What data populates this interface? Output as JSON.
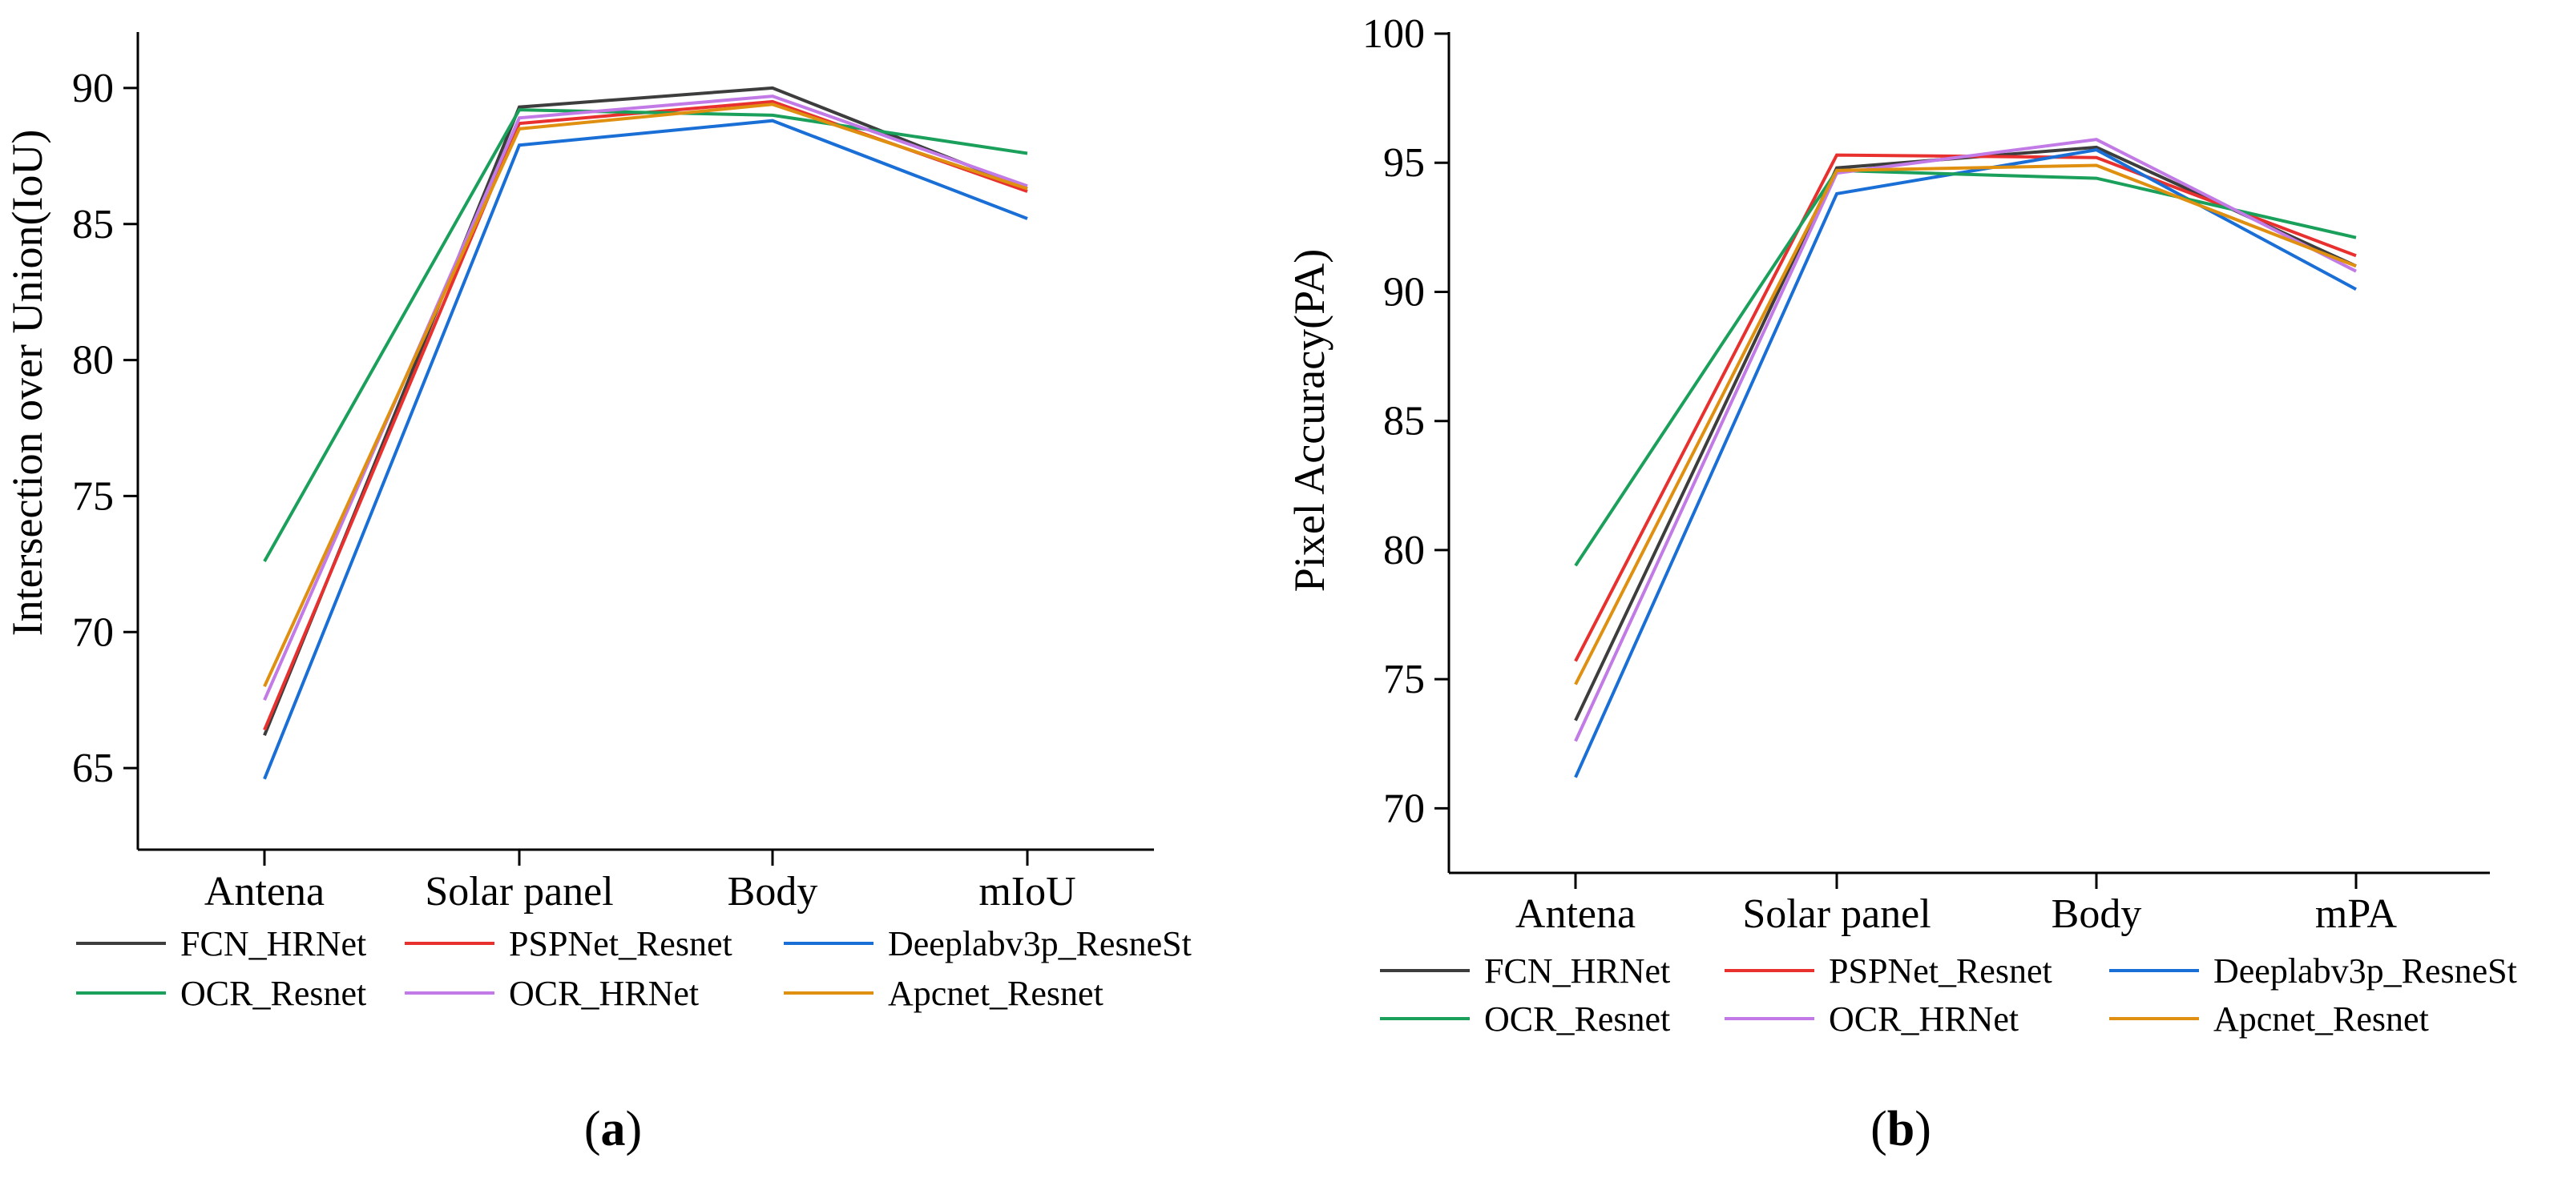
{
  "chart_data": [
    {
      "type": "line",
      "panel_label": "(a)",
      "panel_letter": "a",
      "categories": [
        "Antena",
        "Solar panel",
        "Body",
        "mIoU"
      ],
      "ylabel": "Intersection over Union(IoU)",
      "xlabel": "",
      "ylim": [
        62,
        92
      ],
      "yticks": [
        65,
        70,
        75,
        80,
        85,
        90
      ],
      "series": [
        {
          "name": "FCN_HRNet",
          "color": "#3d3d3d",
          "values": [
            66.2,
            89.3,
            90.0,
            86.3
          ]
        },
        {
          "name": "PSPNet_Resnet",
          "color": "#e8312f",
          "values": [
            66.4,
            88.7,
            89.5,
            86.2
          ]
        },
        {
          "name": "Deeplabv3p_ResneSt",
          "color": "#1a6fd6",
          "values": [
            64.6,
            87.9,
            88.8,
            85.2
          ]
        },
        {
          "name": "OCR_Resnet",
          "color": "#1aa05a",
          "values": [
            72.6,
            89.2,
            89.0,
            87.6
          ]
        },
        {
          "name": "OCR_HRNet",
          "color": "#c27ae6",
          "values": [
            67.5,
            88.9,
            89.7,
            86.4
          ]
        },
        {
          "name": "Apcnet_Resnet",
          "color": "#e09010",
          "values": [
            68.0,
            88.5,
            89.4,
            86.3
          ]
        }
      ]
    },
    {
      "type": "line",
      "panel_label": "(b)",
      "panel_letter": "b",
      "categories": [
        "Antena",
        "Solar panel",
        "Body",
        "mPA"
      ],
      "ylabel": "Pixel Accuracy(PA)",
      "xlabel": "",
      "ylim": [
        67.5,
        100
      ],
      "yticks": [
        70,
        75,
        80,
        85,
        90,
        95,
        100
      ],
      "series": [
        {
          "name": "FCN_HRNet",
          "color": "#3d3d3d",
          "values": [
            73.4,
            94.8,
            95.6,
            91.0
          ]
        },
        {
          "name": "PSPNet_Resnet",
          "color": "#e8312f",
          "values": [
            75.7,
            95.3,
            95.2,
            91.4
          ]
        },
        {
          "name": "Deeplabv3p_ResneSt",
          "color": "#1a6fd6",
          "values": [
            71.2,
            93.8,
            95.5,
            90.1
          ]
        },
        {
          "name": "OCR_Resnet",
          "color": "#1aa05a",
          "values": [
            79.4,
            94.7,
            94.4,
            92.1
          ]
        },
        {
          "name": "OCR_HRNet",
          "color": "#c27ae6",
          "values": [
            72.6,
            94.6,
            95.9,
            90.8
          ]
        },
        {
          "name": "Apcnet_Resnet",
          "color": "#e09010",
          "values": [
            74.8,
            94.7,
            94.9,
            91.0
          ]
        }
      ]
    }
  ]
}
